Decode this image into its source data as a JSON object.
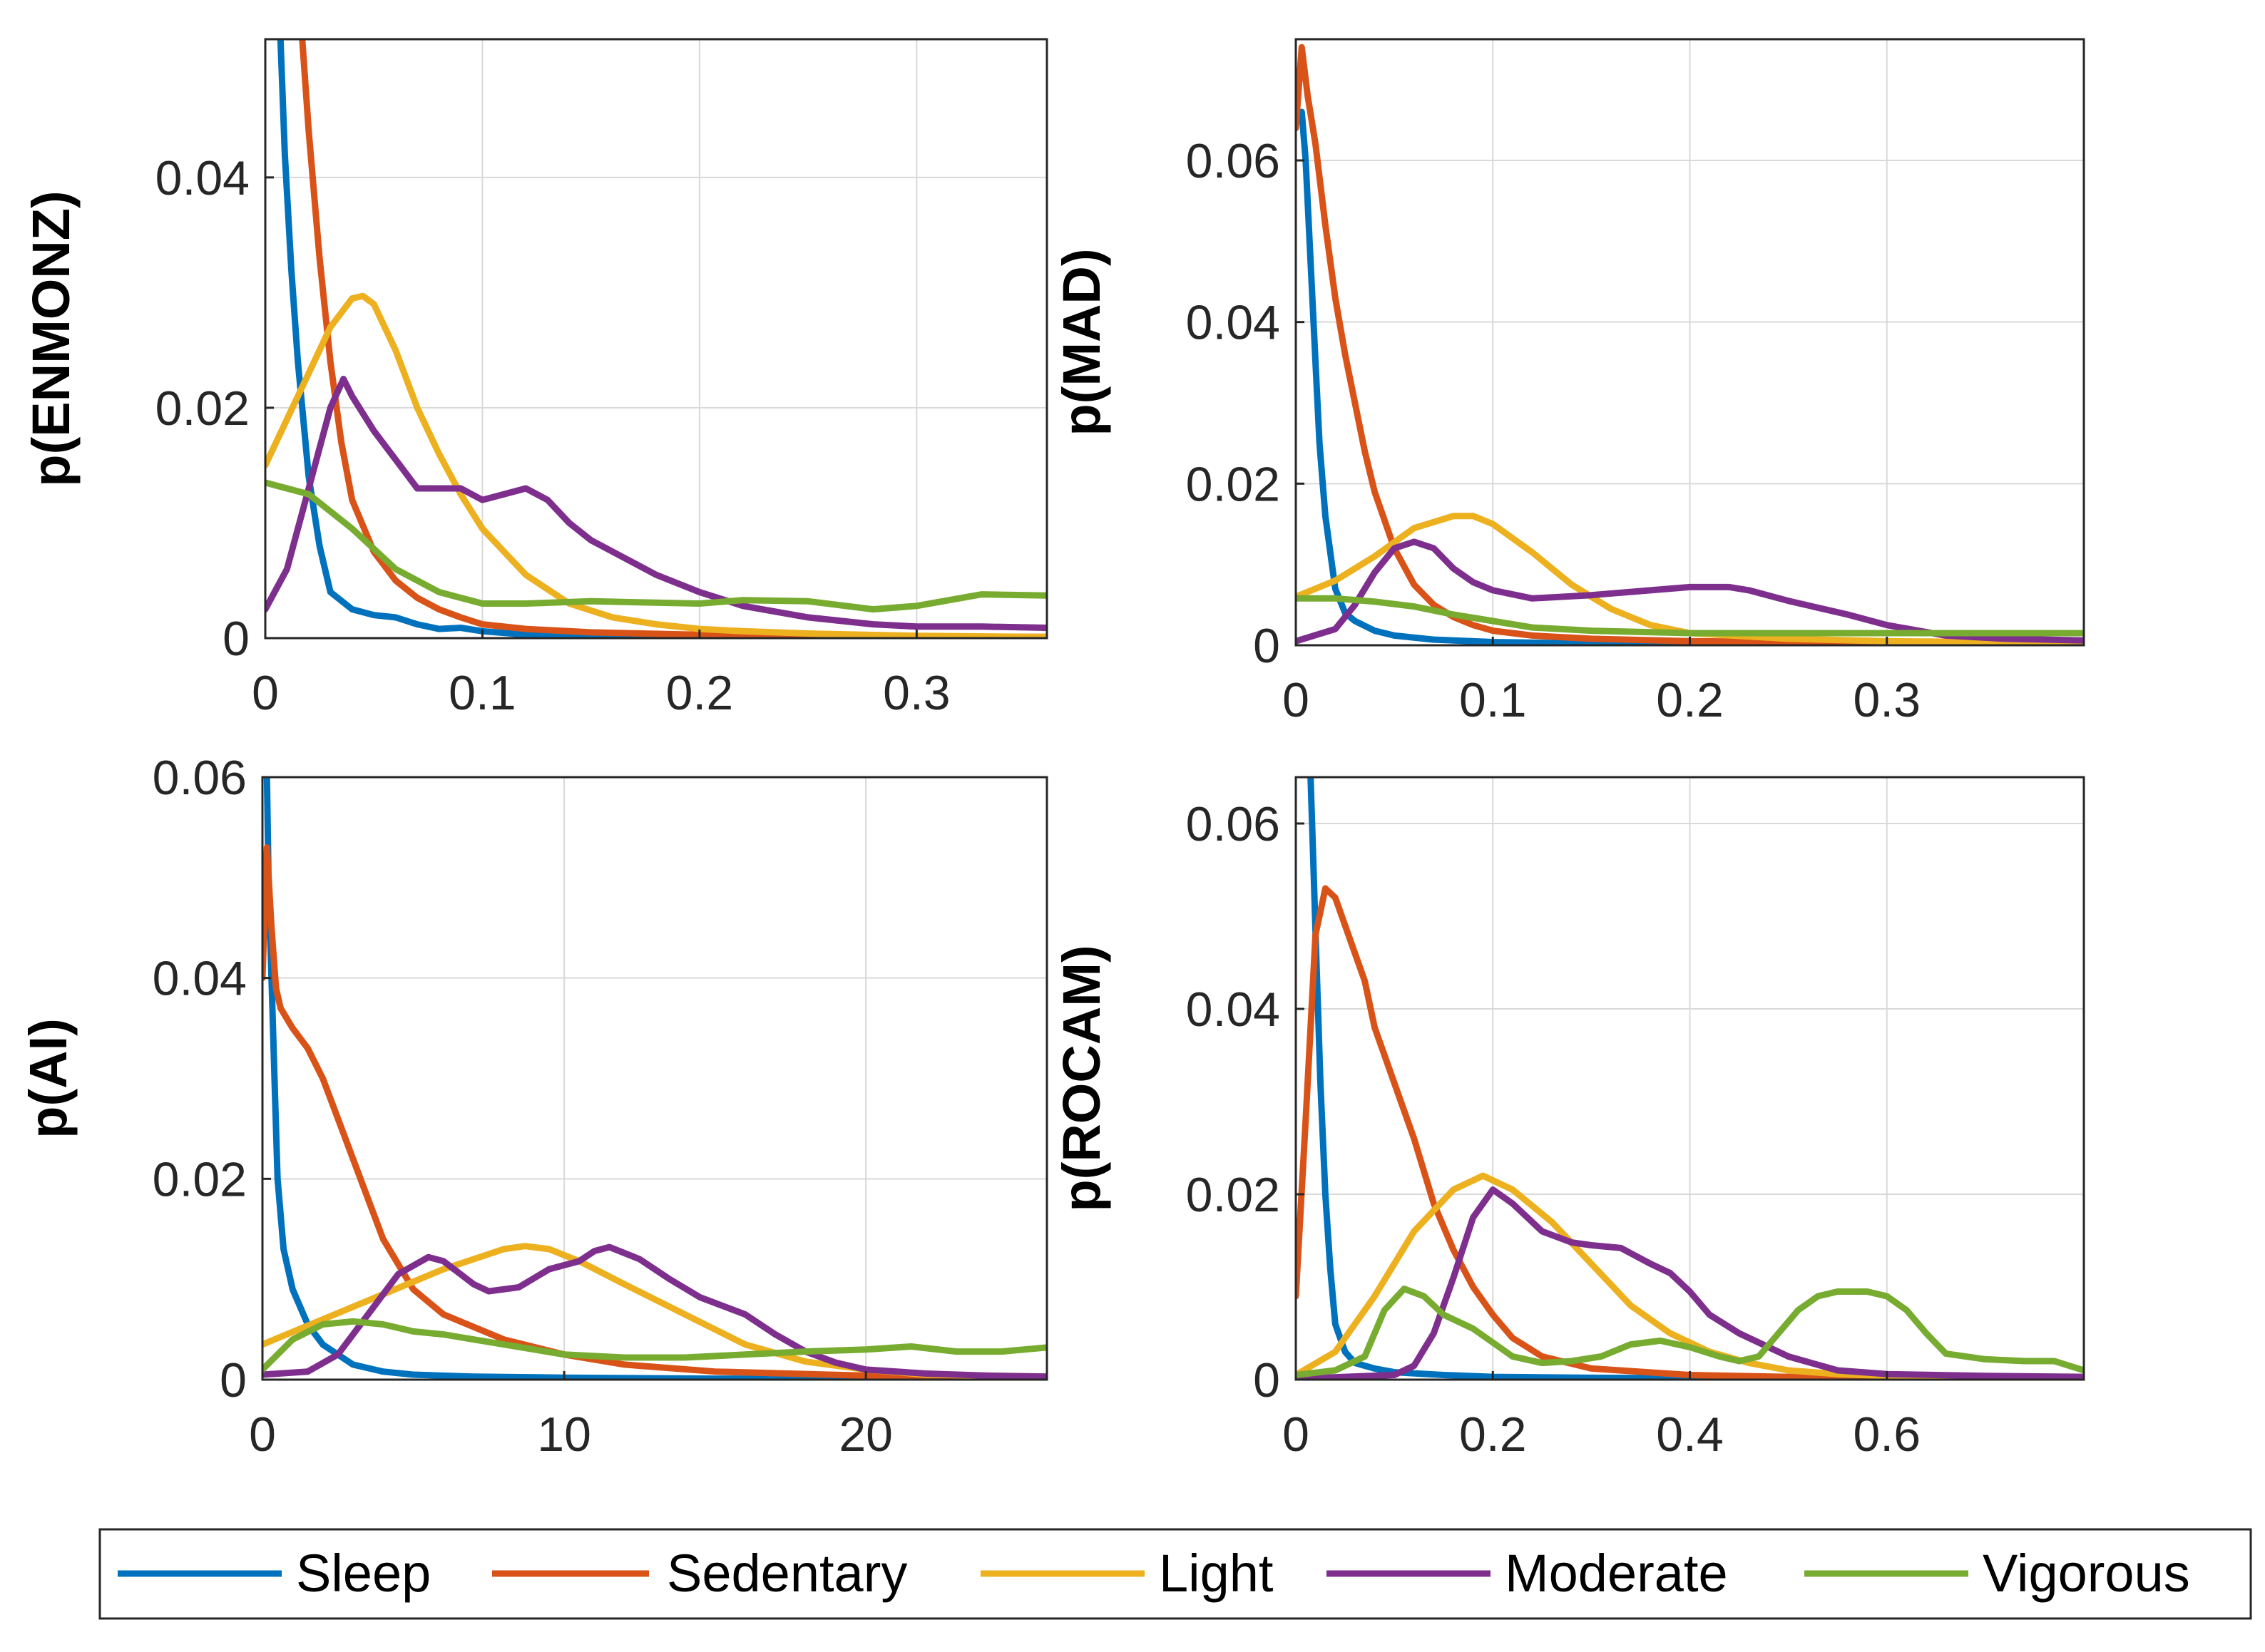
{
  "colors": {
    "Sleep": "#0072BD",
    "Sedentary": "#D95319",
    "Light": "#EDB120",
    "Moderate": "#7E2F8E",
    "Vigorous": "#77AC30"
  },
  "legend": {
    "entries": [
      "Sleep",
      "Sedentary",
      "Light",
      "Moderate",
      "Vigorous"
    ]
  },
  "chart_data": [
    {
      "type": "line",
      "ylabel": "p(ENMONZ)",
      "xlim": [
        0,
        0.36
      ],
      "ylim": [
        0,
        0.052
      ],
      "xticks": [
        0,
        0.1,
        0.2,
        0.3
      ],
      "xtick_labels": [
        "0",
        "0.1",
        "0.2",
        "0.3"
      ],
      "yticks": [
        0,
        0.02,
        0.04
      ],
      "ytick_labels": [
        "0",
        "0.02",
        "0.04"
      ],
      "grid": true,
      "series": [
        {
          "name": "Sleep",
          "x": [
            0.007,
            0.009,
            0.012,
            0.015,
            0.02,
            0.025,
            0.03,
            0.04,
            0.05,
            0.06,
            0.07,
            0.08,
            0.09,
            0.1,
            0.12,
            0.15,
            0.2,
            0.25,
            0.3,
            0.36
          ],
          "y": [
            0.052,
            0.042,
            0.032,
            0.024,
            0.014,
            0.008,
            0.004,
            0.0025,
            0.002,
            0.0018,
            0.0012,
            0.0008,
            0.0009,
            0.0006,
            0.0003,
            0.0002,
            0.0001,
            0.0001,
            0.0001,
            0.0001
          ]
        },
        {
          "name": "Sedentary",
          "x": [
            0.017,
            0.02,
            0.025,
            0.03,
            0.035,
            0.04,
            0.05,
            0.06,
            0.07,
            0.08,
            0.09,
            0.1,
            0.12,
            0.15,
            0.2,
            0.25,
            0.3,
            0.36
          ],
          "y": [
            0.052,
            0.044,
            0.033,
            0.024,
            0.017,
            0.012,
            0.0075,
            0.005,
            0.0035,
            0.0025,
            0.0018,
            0.0012,
            0.0008,
            0.0005,
            0.0003,
            0.0002,
            0.0001,
            0.0001
          ]
        },
        {
          "name": "Light",
          "x": [
            0.0,
            0.01,
            0.02,
            0.03,
            0.04,
            0.045,
            0.05,
            0.06,
            0.07,
            0.08,
            0.09,
            0.1,
            0.12,
            0.14,
            0.16,
            0.18,
            0.2,
            0.22,
            0.25,
            0.3,
            0.36
          ],
          "y": [
            0.015,
            0.019,
            0.023,
            0.027,
            0.0295,
            0.0297,
            0.029,
            0.025,
            0.02,
            0.016,
            0.0125,
            0.0095,
            0.0055,
            0.003,
            0.0018,
            0.0012,
            0.0008,
            0.0006,
            0.0004,
            0.0002,
            0.0001
          ]
        },
        {
          "name": "Moderate",
          "x": [
            0.0,
            0.01,
            0.02,
            0.03,
            0.036,
            0.04,
            0.05,
            0.06,
            0.07,
            0.08,
            0.09,
            0.1,
            0.11,
            0.12,
            0.13,
            0.14,
            0.15,
            0.16,
            0.17,
            0.18,
            0.2,
            0.22,
            0.25,
            0.28,
            0.3,
            0.33,
            0.36
          ],
          "y": [
            0.0025,
            0.006,
            0.013,
            0.02,
            0.0225,
            0.021,
            0.018,
            0.0155,
            0.013,
            0.013,
            0.013,
            0.012,
            0.0125,
            0.013,
            0.012,
            0.01,
            0.0085,
            0.0075,
            0.0065,
            0.0055,
            0.004,
            0.0028,
            0.0018,
            0.0012,
            0.001,
            0.001,
            0.0009
          ]
        },
        {
          "name": "Vigorous",
          "x": [
            0.0,
            0.02,
            0.04,
            0.06,
            0.08,
            0.1,
            0.12,
            0.15,
            0.2,
            0.22,
            0.25,
            0.28,
            0.3,
            0.33,
            0.36
          ],
          "y": [
            0.0135,
            0.0125,
            0.0095,
            0.006,
            0.004,
            0.003,
            0.003,
            0.0032,
            0.003,
            0.0033,
            0.0032,
            0.0025,
            0.0028,
            0.0038,
            0.0037
          ]
        }
      ]
    },
    {
      "type": "line",
      "ylabel": "p(MAD)",
      "xlim": [
        0,
        0.4
      ],
      "ylim": [
        0,
        0.075
      ],
      "xticks": [
        0,
        0.1,
        0.2,
        0.3
      ],
      "xtick_labels": [
        "0",
        "0.1",
        "0.2",
        "0.3"
      ],
      "yticks": [
        0,
        0.02,
        0.04,
        0.06
      ],
      "ytick_labels": [
        "0",
        "0.02",
        "0.04",
        "0.06"
      ],
      "grid": true,
      "series": [
        {
          "name": "Sleep",
          "x": [
            0.003,
            0.005,
            0.007,
            0.01,
            0.012,
            0.015,
            0.02,
            0.025,
            0.03,
            0.04,
            0.05,
            0.07,
            0.1,
            0.15,
            0.2,
            0.3,
            0.4
          ],
          "y": [
            0.066,
            0.06,
            0.05,
            0.035,
            0.025,
            0.016,
            0.007,
            0.004,
            0.003,
            0.0018,
            0.0012,
            0.0007,
            0.0004,
            0.0002,
            0.0001,
            0.0001,
            0.0001
          ]
        },
        {
          "name": "Sedentary",
          "x": [
            0.0,
            0.003,
            0.006,
            0.01,
            0.015,
            0.02,
            0.025,
            0.03,
            0.035,
            0.04,
            0.05,
            0.06,
            0.07,
            0.08,
            0.09,
            0.1,
            0.12,
            0.15,
            0.2,
            0.3,
            0.4
          ],
          "y": [
            0.064,
            0.074,
            0.068,
            0.062,
            0.052,
            0.043,
            0.036,
            0.03,
            0.024,
            0.019,
            0.012,
            0.0075,
            0.005,
            0.0035,
            0.0025,
            0.0018,
            0.0012,
            0.0008,
            0.0005,
            0.0003,
            0.0002
          ]
        },
        {
          "name": "Light",
          "x": [
            0.0,
            0.02,
            0.04,
            0.06,
            0.08,
            0.09,
            0.1,
            0.12,
            0.14,
            0.16,
            0.18,
            0.2,
            0.25,
            0.3,
            0.4
          ],
          "y": [
            0.006,
            0.008,
            0.011,
            0.0145,
            0.016,
            0.016,
            0.015,
            0.0115,
            0.0075,
            0.0045,
            0.0025,
            0.0015,
            0.0008,
            0.0005,
            0.0003
          ]
        },
        {
          "name": "Moderate",
          "x": [
            0.0,
            0.02,
            0.03,
            0.04,
            0.05,
            0.06,
            0.07,
            0.08,
            0.09,
            0.1,
            0.12,
            0.15,
            0.18,
            0.2,
            0.22,
            0.23,
            0.25,
            0.28,
            0.3,
            0.33,
            0.36,
            0.4
          ],
          "y": [
            0.0005,
            0.002,
            0.005,
            0.009,
            0.012,
            0.0128,
            0.012,
            0.0095,
            0.0078,
            0.0068,
            0.0058,
            0.0062,
            0.0068,
            0.0072,
            0.0072,
            0.0068,
            0.0055,
            0.0038,
            0.0025,
            0.0012,
            0.0008,
            0.0006
          ]
        },
        {
          "name": "Vigorous",
          "x": [
            0.0,
            0.02,
            0.04,
            0.06,
            0.08,
            0.1,
            0.12,
            0.15,
            0.2,
            0.3,
            0.4
          ],
          "y": [
            0.0058,
            0.0058,
            0.0054,
            0.0048,
            0.0038,
            0.003,
            0.0022,
            0.0018,
            0.0015,
            0.0015,
            0.0015
          ]
        }
      ]
    },
    {
      "type": "line",
      "ylabel": "p(AI)",
      "xlim": [
        0,
        26
      ],
      "ylim": [
        0,
        0.06
      ],
      "xticks": [
        0,
        10,
        20
      ],
      "xtick_labels": [
        "0",
        "10",
        "20"
      ],
      "yticks": [
        0,
        0.02,
        0.04,
        0.06
      ],
      "ytick_labels": [
        "0",
        "0.02",
        "0.04",
        "0.06"
      ],
      "grid": true,
      "series": [
        {
          "name": "Sleep",
          "x": [
            0.15,
            0.2,
            0.3,
            0.4,
            0.5,
            0.7,
            1.0,
            1.5,
            2.0,
            3.0,
            4.0,
            5.0,
            7.0,
            10.0,
            15.0,
            26.0
          ],
          "y": [
            0.06,
            0.05,
            0.04,
            0.03,
            0.02,
            0.013,
            0.009,
            0.0055,
            0.0035,
            0.0015,
            0.0008,
            0.0005,
            0.0003,
            0.0002,
            0.0001,
            0.0001
          ]
        },
        {
          "name": "Sedentary",
          "x": [
            0.0,
            0.15,
            0.3,
            0.45,
            0.6,
            1.0,
            1.5,
            2.0,
            2.5,
            3.0,
            4.0,
            5.0,
            6.0,
            8.0,
            10.0,
            12.0,
            15.0,
            20.0,
            26.0
          ],
          "y": [
            0.04,
            0.053,
            0.045,
            0.039,
            0.037,
            0.035,
            0.033,
            0.03,
            0.026,
            0.022,
            0.014,
            0.009,
            0.0065,
            0.004,
            0.0025,
            0.0015,
            0.0008,
            0.0004,
            0.0002
          ]
        },
        {
          "name": "Light",
          "x": [
            0.0,
            2.0,
            4.0,
            6.0,
            8.0,
            8.7,
            9.5,
            10.5,
            12.0,
            14.0,
            16.0,
            18.0,
            20.0,
            22.0,
            26.0
          ],
          "y": [
            0.0035,
            0.006,
            0.0085,
            0.011,
            0.013,
            0.0133,
            0.013,
            0.0118,
            0.0095,
            0.0065,
            0.0035,
            0.0018,
            0.001,
            0.0005,
            0.0003
          ]
        },
        {
          "name": "Moderate",
          "x": [
            0.0,
            1.5,
            2.5,
            3.5,
            4.5,
            5.5,
            6.0,
            7.0,
            7.5,
            8.5,
            9.5,
            10.5,
            11.0,
            11.5,
            12.5,
            13.5,
            14.5,
            16.0,
            17.0,
            18.0,
            19.0,
            20.0,
            22.0,
            24.0,
            26.0
          ],
          "y": [
            0.0005,
            0.0008,
            0.0025,
            0.0065,
            0.0105,
            0.0122,
            0.0118,
            0.0095,
            0.0088,
            0.0092,
            0.011,
            0.0118,
            0.0128,
            0.0132,
            0.012,
            0.01,
            0.0082,
            0.0065,
            0.0045,
            0.0028,
            0.0017,
            0.001,
            0.0006,
            0.0004,
            0.0003
          ]
        },
        {
          "name": "Vigorous",
          "x": [
            0.0,
            1.0,
            2.0,
            3.0,
            4.0,
            5.0,
            6.0,
            8.0,
            10.0,
            12.0,
            14.0,
            16.0,
            18.0,
            20.0,
            21.5,
            23.0,
            24.5,
            26.0
          ],
          "y": [
            0.001,
            0.004,
            0.0055,
            0.0058,
            0.0055,
            0.0048,
            0.0045,
            0.0035,
            0.0025,
            0.0022,
            0.0022,
            0.0025,
            0.0028,
            0.003,
            0.0033,
            0.0028,
            0.0028,
            0.0032
          ]
        }
      ]
    },
    {
      "type": "line",
      "ylabel": "p(ROCAM)",
      "xlim": [
        0,
        0.8
      ],
      "ylim": [
        0,
        0.065
      ],
      "xticks": [
        0,
        0.2,
        0.4,
        0.6
      ],
      "xtick_labels": [
        "0",
        "0.2",
        "0.4",
        "0.6"
      ],
      "yticks": [
        0,
        0.02,
        0.04,
        0.06
      ],
      "ytick_labels": [
        "0",
        "0.02",
        "0.04",
        "0.06"
      ],
      "grid": true,
      "series": [
        {
          "name": "Sleep",
          "x": [
            0.015,
            0.018,
            0.021,
            0.025,
            0.03,
            0.035,
            0.04,
            0.05,
            0.06,
            0.08,
            0.1,
            0.15,
            0.2,
            0.3,
            0.5,
            0.8
          ],
          "y": [
            0.065,
            0.055,
            0.045,
            0.032,
            0.02,
            0.012,
            0.006,
            0.003,
            0.0018,
            0.0012,
            0.0008,
            0.0005,
            0.0003,
            0.0002,
            0.0001,
            0.0001
          ]
        },
        {
          "name": "Sedentary",
          "x": [
            0.0,
            0.01,
            0.02,
            0.03,
            0.04,
            0.05,
            0.06,
            0.07,
            0.08,
            0.1,
            0.12,
            0.14,
            0.16,
            0.18,
            0.2,
            0.22,
            0.25,
            0.3,
            0.4,
            0.5,
            0.8
          ],
          "y": [
            0.009,
            0.028,
            0.048,
            0.053,
            0.052,
            0.049,
            0.046,
            0.043,
            0.038,
            0.032,
            0.026,
            0.019,
            0.014,
            0.01,
            0.007,
            0.0045,
            0.0025,
            0.0012,
            0.0005,
            0.0003,
            0.0001
          ]
        },
        {
          "name": "Light",
          "x": [
            0.0,
            0.04,
            0.08,
            0.12,
            0.16,
            0.19,
            0.22,
            0.26,
            0.3,
            0.34,
            0.38,
            0.42,
            0.46,
            0.5,
            0.55,
            0.6,
            0.7,
            0.8
          ],
          "y": [
            0.0005,
            0.003,
            0.009,
            0.016,
            0.0205,
            0.022,
            0.0205,
            0.017,
            0.0125,
            0.008,
            0.005,
            0.003,
            0.0018,
            0.001,
            0.0006,
            0.0004,
            0.0002,
            0.0001
          ]
        },
        {
          "name": "Moderate",
          "x": [
            0.0,
            0.05,
            0.1,
            0.12,
            0.14,
            0.16,
            0.18,
            0.2,
            0.22,
            0.25,
            0.28,
            0.3,
            0.33,
            0.36,
            0.38,
            0.4,
            0.42,
            0.45,
            0.48,
            0.5,
            0.55,
            0.6,
            0.7,
            0.8
          ],
          "y": [
            0.0001,
            0.0003,
            0.0005,
            0.0015,
            0.005,
            0.011,
            0.0175,
            0.0205,
            0.019,
            0.016,
            0.0148,
            0.0145,
            0.0142,
            0.0125,
            0.0115,
            0.0095,
            0.007,
            0.005,
            0.0035,
            0.0025,
            0.001,
            0.0006,
            0.0004,
            0.0003
          ]
        },
        {
          "name": "Vigorous",
          "x": [
            0.0,
            0.04,
            0.07,
            0.09,
            0.11,
            0.13,
            0.15,
            0.18,
            0.2,
            0.22,
            0.25,
            0.28,
            0.31,
            0.34,
            0.37,
            0.4,
            0.43,
            0.45,
            0.47,
            0.49,
            0.51,
            0.53,
            0.55,
            0.58,
            0.6,
            0.62,
            0.64,
            0.66,
            0.7,
            0.74,
            0.77,
            0.8
          ],
          "y": [
            0.0005,
            0.001,
            0.0025,
            0.0075,
            0.0098,
            0.009,
            0.007,
            0.0055,
            0.004,
            0.0025,
            0.0018,
            0.002,
            0.0025,
            0.0038,
            0.0042,
            0.0035,
            0.0025,
            0.002,
            0.0025,
            0.005,
            0.0075,
            0.009,
            0.0095,
            0.0095,
            0.009,
            0.0075,
            0.005,
            0.0028,
            0.0022,
            0.002,
            0.002,
            0.001
          ]
        }
      ]
    }
  ]
}
